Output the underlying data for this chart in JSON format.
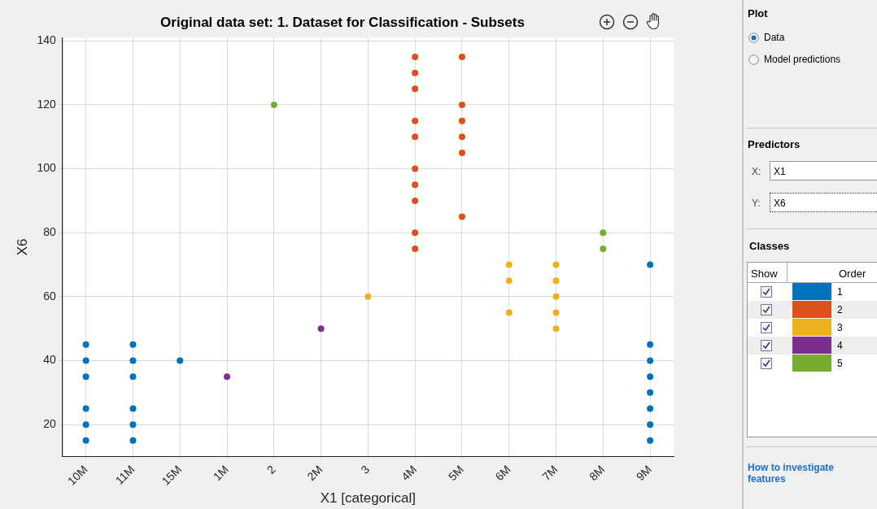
{
  "chart_data": {
    "type": "scatter",
    "title": "Original data set: 1. Dataset for Classification - Subsets",
    "xlabel": "X1 [categorical]",
    "ylabel": "X6",
    "categories": [
      "10M",
      "11M",
      "15M",
      "1M",
      "2",
      "2M",
      "3",
      "4M",
      "5M",
      "6M",
      "7M",
      "8M",
      "9M"
    ],
    "ylim": [
      10,
      141
    ],
    "yticks": [
      20,
      40,
      60,
      80,
      100,
      120,
      140
    ],
    "grid": true,
    "legend": "right",
    "marker": "circle",
    "legend_title": "Classes",
    "series": [
      {
        "name": "1",
        "color": "#0072bd",
        "x": [
          "10M",
          "10M",
          "10M",
          "10M",
          "10M",
          "10M",
          "11M",
          "11M",
          "11M",
          "11M",
          "11M",
          "11M",
          "15M",
          "9M",
          "9M",
          "9M",
          "9M",
          "9M",
          "9M",
          "9M",
          "9M"
        ],
        "values": [
          45,
          40,
          35,
          25,
          20,
          15,
          45,
          40,
          35,
          25,
          20,
          15,
          40,
          70,
          45,
          40,
          35,
          30,
          25,
          20,
          15
        ]
      },
      {
        "name": "2",
        "color": "#d95319",
        "x": [
          "4M",
          "4M",
          "4M",
          "4M",
          "4M",
          "4M",
          "4M",
          "4M",
          "4M",
          "4M",
          "5M",
          "5M",
          "5M",
          "5M",
          "5M",
          "5M"
        ],
        "values": [
          135,
          130,
          125,
          115,
          110,
          100,
          95,
          90,
          80,
          75,
          135,
          120,
          115,
          110,
          105,
          85
        ]
      },
      {
        "name": "3",
        "color": "#edb120",
        "x": [
          "3",
          "6M",
          "6M",
          "6M",
          "7M",
          "7M",
          "7M",
          "7M",
          "7M"
        ],
        "values": [
          60,
          70,
          65,
          55,
          70,
          65,
          60,
          55,
          50
        ]
      },
      {
        "name": "4",
        "color": "#7e2f8e",
        "x": [
          "1M",
          "2M"
        ],
        "values": [
          35,
          50
        ]
      },
      {
        "name": "5",
        "color": "#77ac30",
        "x": [
          "2",
          "8M",
          "8M"
        ],
        "values": [
          120,
          80,
          75
        ]
      }
    ],
    "annotations": [
      "Plot",
      "Data",
      "Model predictions",
      "Predictors",
      "X:",
      "X1",
      "Y:",
      "X6",
      "Show",
      "Order",
      "How to investigate features"
    ]
  }
}
